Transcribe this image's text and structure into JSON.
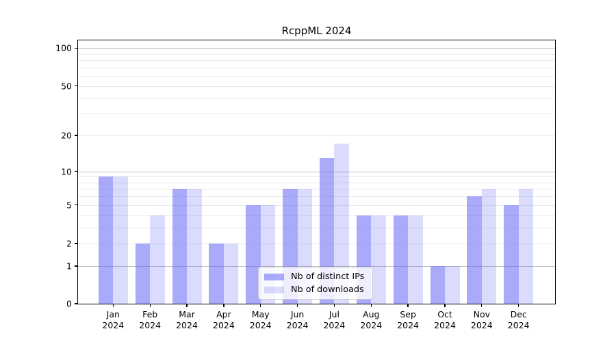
{
  "title": "RcppML 2024",
  "colors": {
    "bar_distinct_ips": "rgba(100,100,245,0.55)",
    "bar_downloads": "rgba(100,100,245,0.23)",
    "major_grid": "#bdbdbd",
    "minor_grid": "#e9e9e9",
    "spine": "#000000",
    "text": "#000000",
    "legend_border": "#cccccc",
    "legend_background": "rgba(255,255,255,0.8)"
  },
  "legend": {
    "items": [
      {
        "label": "Nb of distinct IPs",
        "swatch": "bar_distinct_ips"
      },
      {
        "label": "Nb of downloads",
        "swatch": "bar_downloads"
      }
    ],
    "position": "lower-center-inside"
  },
  "chart_data": {
    "type": "bar",
    "title": "RcppML 2024",
    "categories": [
      "Jan",
      "Feb",
      "Mar",
      "Apr",
      "May",
      "Jun",
      "Jul",
      "Aug",
      "Sep",
      "Oct",
      "Nov",
      "Dec"
    ],
    "year_label": "2024",
    "series": [
      {
        "name": "Nb of distinct IPs",
        "values": [
          9,
          2,
          7,
          2,
          5,
          7,
          13,
          4,
          4,
          1,
          6,
          5
        ]
      },
      {
        "name": "Nb of downloads",
        "values": [
          9,
          4,
          7,
          2,
          5,
          7,
          17,
          4,
          4,
          1,
          7,
          7
        ]
      }
    ],
    "xlabel": "",
    "ylabel": "",
    "y_scale": "log10(1+x)",
    "ylim": [
      0,
      115
    ],
    "y_tick_values": [
      0,
      1,
      2,
      5,
      10,
      20,
      50,
      100
    ],
    "y_tick_labels": [
      "0",
      "1",
      "2",
      "5",
      "10",
      "20",
      "50",
      "100"
    ],
    "grid_major_values": [
      1,
      10,
      100
    ],
    "grid_minor_values": [
      2,
      3,
      4,
      5,
      6,
      7,
      8,
      9,
      20,
      30,
      40,
      50,
      60,
      70,
      80,
      90
    ],
    "grid": "horizontal-only",
    "legend_position": "lower center, inside plot"
  }
}
